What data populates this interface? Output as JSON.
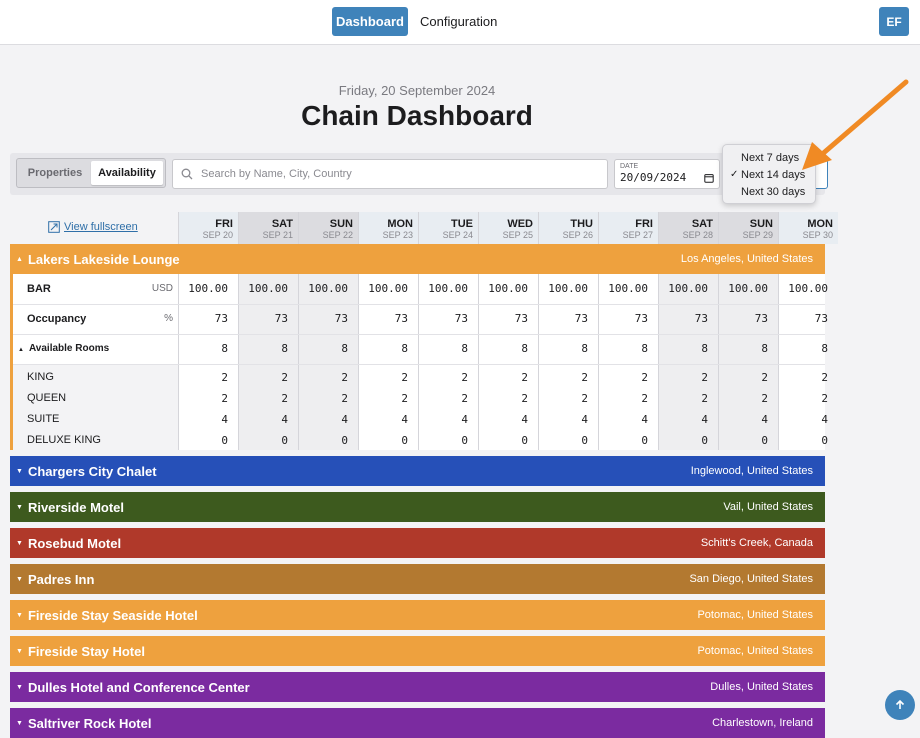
{
  "nav": {
    "dashboard_label": "Dashboard",
    "configuration_label": "Configuration",
    "avatar_initials": "EF"
  },
  "page": {
    "date_line": "Friday, 20 September 2024",
    "title": "Chain Dashboard"
  },
  "toolbar": {
    "segment": {
      "properties_label": "Properties",
      "availability_label": "Availability",
      "active": "Availability"
    },
    "search": {
      "placeholder": "Search by Name, City, Country",
      "value": ""
    },
    "date": {
      "label": "DATE",
      "value": "20/09/2024"
    },
    "range_options": [
      {
        "label": "Next 7 days",
        "selected": false
      },
      {
        "label": "Next 14 days",
        "selected": true
      },
      {
        "label": "Next 30 days",
        "selected": false
      }
    ]
  },
  "grid": {
    "fullscreen_label": "View fullscreen",
    "days": [
      {
        "dow": "FRI",
        "date": "SEP 20",
        "weekend": false
      },
      {
        "dow": "SAT",
        "date": "SEP 21",
        "weekend": true
      },
      {
        "dow": "SUN",
        "date": "SEP 22",
        "weekend": true
      },
      {
        "dow": "MON",
        "date": "SEP 23",
        "weekend": false
      },
      {
        "dow": "TUE",
        "date": "SEP 24",
        "weekend": false
      },
      {
        "dow": "WED",
        "date": "SEP 25",
        "weekend": false
      },
      {
        "dow": "THU",
        "date": "SEP 26",
        "weekend": false
      },
      {
        "dow": "FRI",
        "date": "SEP 27",
        "weekend": false
      },
      {
        "dow": "SAT",
        "date": "SEP 28",
        "weekend": true
      },
      {
        "dow": "SUN",
        "date": "SEP 29",
        "weekend": true
      },
      {
        "dow": "MON",
        "date": "SEP 30",
        "weekend": false
      }
    ],
    "expanded_hotel": {
      "name": "Lakers Lakeside Lounge",
      "location": "Los Angeles, United States",
      "color": "#eea13e",
      "rows": [
        {
          "label": "BAR",
          "unit": "USD",
          "values": [
            "100.00",
            "100.00",
            "100.00",
            "100.00",
            "100.00",
            "100.00",
            "100.00",
            "100.00",
            "100.00",
            "100.00",
            "100.00"
          ]
        },
        {
          "label": "Occupancy",
          "unit": "%",
          "values": [
            "73",
            "73",
            "73",
            "73",
            "73",
            "73",
            "73",
            "73",
            "73",
            "73",
            "73"
          ]
        },
        {
          "label": "Available Rooms",
          "unit": "",
          "values": [
            "8",
            "8",
            "8",
            "8",
            "8",
            "8",
            "8",
            "8",
            "8",
            "8",
            "8"
          ]
        }
      ],
      "room_types": [
        {
          "label": "KING",
          "values": [
            "2",
            "2",
            "2",
            "2",
            "2",
            "2",
            "2",
            "2",
            "2",
            "2",
            "2"
          ]
        },
        {
          "label": "QUEEN",
          "values": [
            "2",
            "2",
            "2",
            "2",
            "2",
            "2",
            "2",
            "2",
            "2",
            "2",
            "2"
          ]
        },
        {
          "label": "SUITE",
          "values": [
            "4",
            "4",
            "4",
            "4",
            "4",
            "4",
            "4",
            "4",
            "4",
            "4",
            "4"
          ]
        },
        {
          "label": "DELUXE KING",
          "values": [
            "0",
            "0",
            "0",
            "0",
            "0",
            "0",
            "0",
            "0",
            "0",
            "0",
            "0"
          ]
        }
      ]
    },
    "collapsed_hotels": [
      {
        "name": "Chargers City Chalet",
        "location": "Inglewood, United States",
        "color": "#2650b8"
      },
      {
        "name": "Riverside Motel",
        "location": "Vail, United States",
        "color": "#3d5a1e"
      },
      {
        "name": "Rosebud Motel",
        "location": "Schitt's Creek, Canada",
        "color": "#b0392a"
      },
      {
        "name": "Padres Inn",
        "location": "San Diego, United States",
        "color": "#b37930"
      },
      {
        "name": "Fireside Stay Seaside Hotel",
        "location": "Potomac, United States",
        "color": "#eea13e"
      },
      {
        "name": "Fireside Stay Hotel",
        "location": "Potomac, United States",
        "color": "#eea13e"
      },
      {
        "name": "Dulles Hotel and Conference Center",
        "location": "Dulles, United States",
        "color": "#7b2ba0"
      },
      {
        "name": "Saltriver Rock Hotel",
        "location": "Charlestown, Ireland",
        "color": "#7b2ba0"
      }
    ]
  },
  "colors": {
    "accent": "#3f83ba",
    "annotation_arrow": "#f08a24"
  },
  "icons": {
    "search": "search-icon",
    "calendar": "calendar-icon",
    "fullscreen": "fullscreen-icon",
    "scroll_top": "arrow-up-icon"
  }
}
